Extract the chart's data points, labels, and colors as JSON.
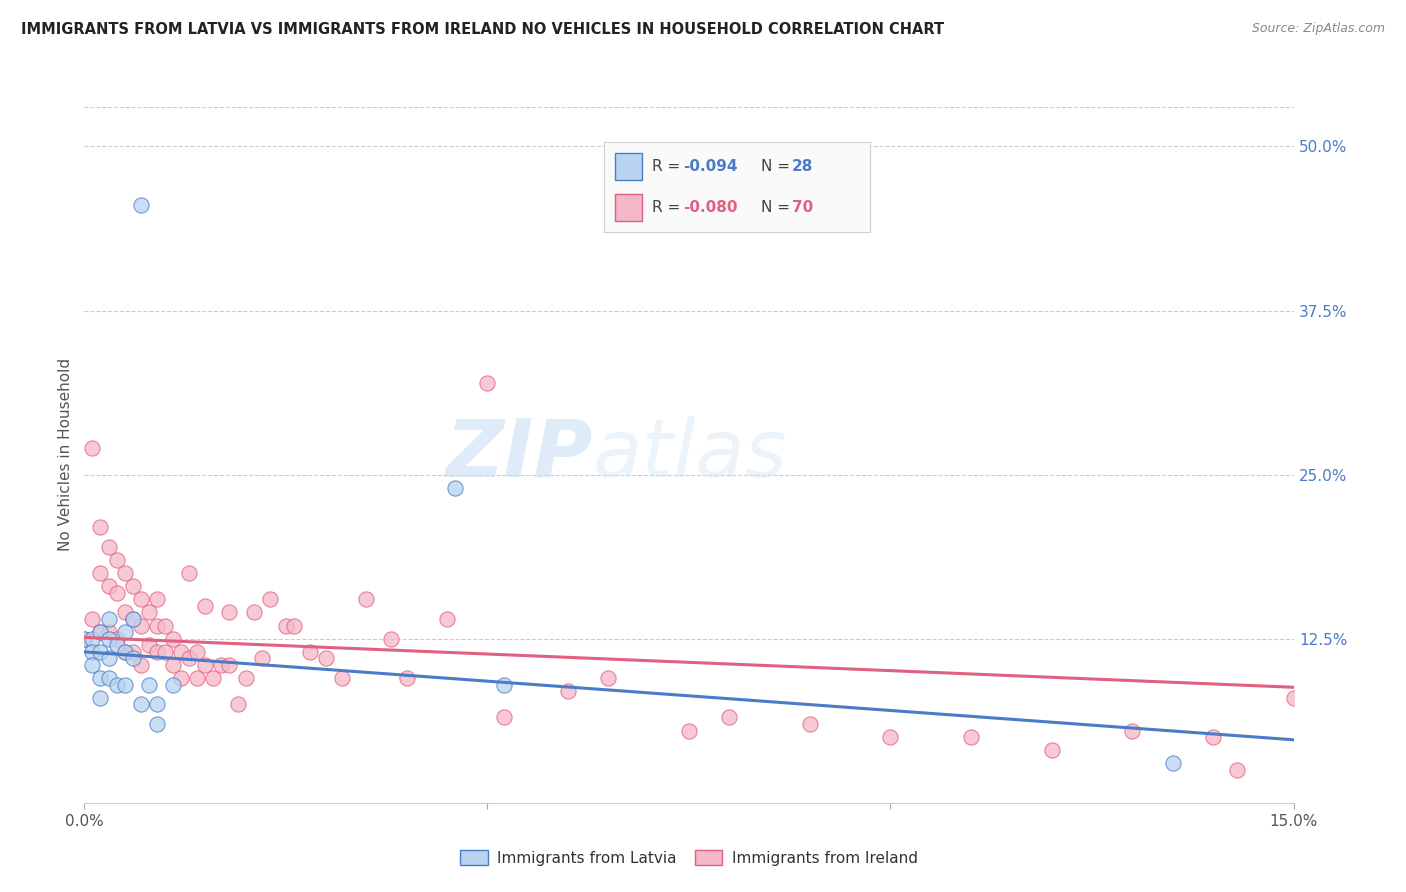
{
  "title": "IMMIGRANTS FROM LATVIA VS IMMIGRANTS FROM IRELAND NO VEHICLES IN HOUSEHOLD CORRELATION CHART",
  "source": "Source: ZipAtlas.com",
  "ylabel": "No Vehicles in Household",
  "xlim": [
    0.0,
    0.15
  ],
  "ylim": [
    0.0,
    0.53
  ],
  "yticks_right": [
    0.0,
    0.125,
    0.25,
    0.375,
    0.5
  ],
  "ytick_right_labels": [
    "",
    "12.5%",
    "25.0%",
    "37.5%",
    "50.0%"
  ],
  "watermark_zip": "ZIP",
  "watermark_atlas": "atlas",
  "background_color": "#ffffff",
  "grid_color": "#cccccc",
  "blue_scatter_color": "#b8d4f0",
  "blue_line_color": "#4a7cc7",
  "pink_scatter_color": "#f5b8c8",
  "pink_line_color": "#e06080",
  "scatter_size": 120,
  "latvia_line_start_y": 0.115,
  "latvia_line_end_y": 0.048,
  "ireland_line_start_y": 0.126,
  "ireland_line_end_y": 0.088,
  "latvia_x": [
    0.007,
    0.0,
    0.001,
    0.001,
    0.001,
    0.002,
    0.002,
    0.002,
    0.002,
    0.003,
    0.003,
    0.003,
    0.003,
    0.004,
    0.004,
    0.005,
    0.005,
    0.005,
    0.006,
    0.006,
    0.007,
    0.008,
    0.009,
    0.009,
    0.011,
    0.046,
    0.052,
    0.135
  ],
  "latvia_y": [
    0.455,
    0.125,
    0.125,
    0.115,
    0.105,
    0.13,
    0.115,
    0.095,
    0.08,
    0.14,
    0.125,
    0.11,
    0.095,
    0.12,
    0.09,
    0.13,
    0.115,
    0.09,
    0.14,
    0.11,
    0.075,
    0.09,
    0.075,
    0.06,
    0.09,
    0.24,
    0.09,
    0.03
  ],
  "ireland_x": [
    0.0,
    0.001,
    0.001,
    0.002,
    0.002,
    0.002,
    0.003,
    0.003,
    0.003,
    0.004,
    0.004,
    0.004,
    0.005,
    0.005,
    0.005,
    0.006,
    0.006,
    0.006,
    0.007,
    0.007,
    0.007,
    0.008,
    0.008,
    0.009,
    0.009,
    0.009,
    0.01,
    0.01,
    0.011,
    0.011,
    0.012,
    0.012,
    0.013,
    0.013,
    0.014,
    0.014,
    0.015,
    0.015,
    0.016,
    0.017,
    0.018,
    0.018,
    0.019,
    0.02,
    0.021,
    0.022,
    0.023,
    0.025,
    0.026,
    0.028,
    0.03,
    0.032,
    0.035,
    0.038,
    0.04,
    0.045,
    0.05,
    0.052,
    0.06,
    0.065,
    0.075,
    0.08,
    0.09,
    0.1,
    0.11,
    0.12,
    0.13,
    0.14,
    0.143,
    0.15
  ],
  "ireland_y": [
    0.125,
    0.27,
    0.14,
    0.21,
    0.175,
    0.13,
    0.195,
    0.165,
    0.13,
    0.185,
    0.16,
    0.125,
    0.175,
    0.145,
    0.115,
    0.165,
    0.14,
    0.115,
    0.155,
    0.135,
    0.105,
    0.145,
    0.12,
    0.155,
    0.135,
    0.115,
    0.135,
    0.115,
    0.125,
    0.105,
    0.115,
    0.095,
    0.175,
    0.11,
    0.115,
    0.095,
    0.15,
    0.105,
    0.095,
    0.105,
    0.145,
    0.105,
    0.075,
    0.095,
    0.145,
    0.11,
    0.155,
    0.135,
    0.135,
    0.115,
    0.11,
    0.095,
    0.155,
    0.125,
    0.095,
    0.14,
    0.32,
    0.065,
    0.085,
    0.095,
    0.055,
    0.065,
    0.06,
    0.05,
    0.05,
    0.04,
    0.055,
    0.05,
    0.025,
    0.08
  ]
}
